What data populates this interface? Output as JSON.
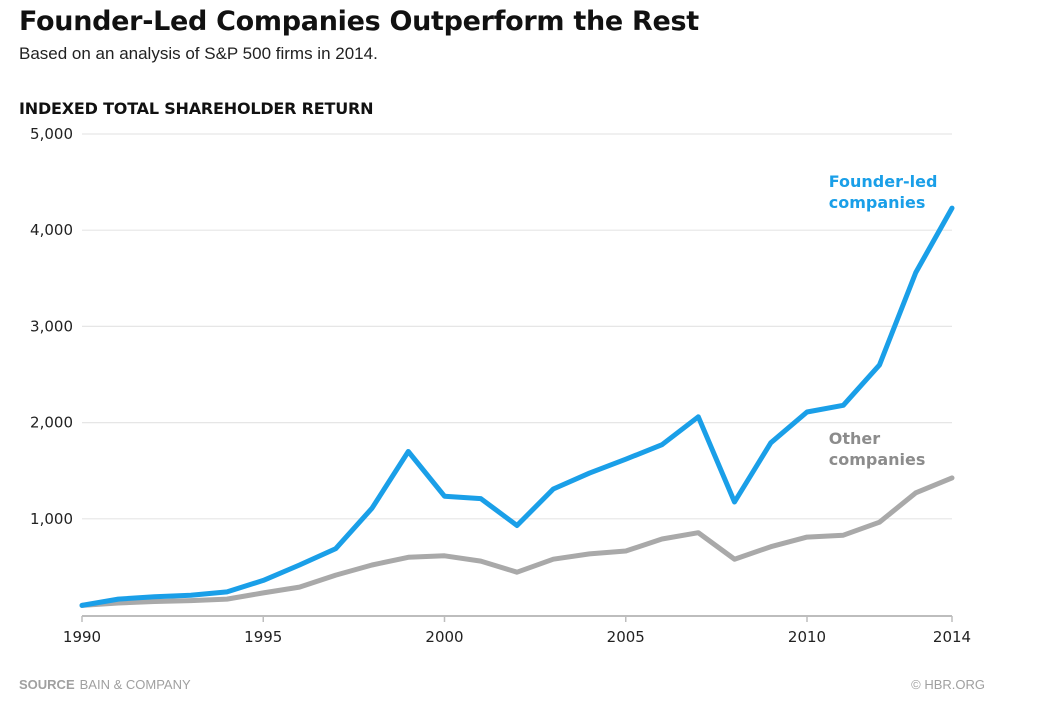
{
  "header": {
    "title": "Founder-Led Companies Outperform the Rest",
    "subtitle": "Based on an analysis of S&P 500 firms in 2014."
  },
  "footer": {
    "source_key": "SOURCE",
    "source_value": "BAIN & COMPANY",
    "credit": "© HBR.ORG"
  },
  "colors": {
    "founder": "#1a9fe8",
    "other": "#a9a9a9",
    "other_label": "#8c8c8c",
    "grid": "#e6e6e6",
    "axis": "#bdbdbd"
  },
  "chart_data": {
    "type": "line",
    "title": "Founder-Led Companies Outperform the Rest",
    "subtitle": "Based on an analysis of S&P 500 firms in 2014.",
    "xlabel": "",
    "ylabel": "INDEXED TOTAL SHAREHOLDER RETURN",
    "x": [
      1990,
      1991,
      1992,
      1993,
      1994,
      1995,
      1996,
      1997,
      1998,
      1999,
      2000,
      2001,
      2002,
      2003,
      2004,
      2005,
      2006,
      2007,
      2008,
      2009,
      2010,
      2011,
      2012,
      2013,
      2014
    ],
    "xlim": [
      1990,
      2014
    ],
    "ylim": [
      0,
      5000
    ],
    "xticks": [
      1990,
      1995,
      2000,
      2005,
      2010,
      2014
    ],
    "xtick_labels": [
      "1990",
      "1995",
      "2000",
      "2005",
      "2010",
      "2014"
    ],
    "yticks": [
      1000,
      2000,
      3000,
      4000,
      5000
    ],
    "ytick_labels": [
      "1,000",
      "2,000",
      "3,000",
      "4,000",
      "5,000"
    ],
    "grid": true,
    "legend": "inline-labels",
    "series": [
      {
        "name": "Founder-led companies",
        "label_lines": [
          "Founder-led",
          "companies"
        ],
        "label_anchor": {
          "x": 2010.6,
          "y": 4450
        },
        "values": [
          100,
          165,
          190,
          205,
          240,
          360,
          520,
          690,
          1110,
          1700,
          1235,
          1210,
          930,
          1310,
          1475,
          1620,
          1770,
          2060,
          1175,
          1790,
          2110,
          2180,
          2600,
          3560,
          4230
        ]
      },
      {
        "name": "Other companies",
        "label_lines": [
          "Other",
          "companies"
        ],
        "label_anchor": {
          "x": 2010.6,
          "y": 1780
        },
        "values": [
          100,
          125,
          140,
          150,
          165,
          230,
          290,
          415,
          520,
          600,
          615,
          560,
          445,
          580,
          635,
          665,
          790,
          855,
          580,
          710,
          810,
          830,
          965,
          1270,
          1425
        ]
      }
    ]
  }
}
